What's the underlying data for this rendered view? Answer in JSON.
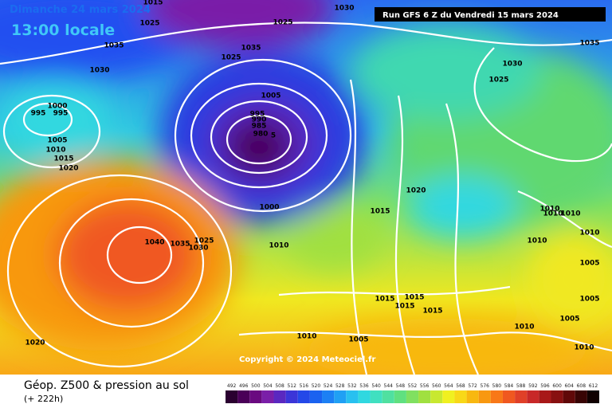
{
  "header": {
    "date": "Dimanche 24 mars 2024",
    "time": "13:00 locale",
    "run": "Run GFS 6 Z du Vendredi 15 mars 2024"
  },
  "copyright": "Copyright © 2024 Meteociel.fr",
  "footer": {
    "title": "Géop. Z500 & pression au sol",
    "lead": "(+ 222h)"
  },
  "colorbar": {
    "ticks": [
      492,
      496,
      500,
      504,
      508,
      512,
      516,
      520,
      524,
      528,
      532,
      536,
      540,
      544,
      548,
      552,
      556,
      560,
      564,
      568,
      572,
      576,
      580,
      584,
      588,
      592,
      596,
      600,
      604,
      608,
      612
    ],
    "colors": [
      "#2a0030",
      "#4a0058",
      "#6a0a80",
      "#7a1fa8",
      "#5a28c0",
      "#3b35d8",
      "#2448e8",
      "#1a62f0",
      "#1c80f4",
      "#20a0f4",
      "#28c0f0",
      "#30d8e0",
      "#40e0c0",
      "#50e0a0",
      "#60e080",
      "#80e060",
      "#a0e040",
      "#c8e830",
      "#f0f020",
      "#f8d818",
      "#f8b810",
      "#f89810",
      "#f87818",
      "#f05820",
      "#e04028",
      "#c82828",
      "#a81818",
      "#881010",
      "#600808",
      "#380404",
      "#100000"
    ]
  },
  "isobar_labels": [
    1015,
    1025,
    1035,
    1030,
    1030,
    1025,
    1035,
    1025,
    1005,
    995,
    990,
    985,
    980,
    5,
    1000,
    995,
    995,
    1005,
    1010,
    1015,
    1020,
    1040,
    1035,
    1025,
    1030,
    1020,
    1000,
    1010,
    1020,
    1015,
    1030,
    1025,
    1035,
    1010,
    1010,
    1010,
    1010,
    1005,
    1010,
    1005,
    1015,
    1015,
    1015,
    1015,
    1010,
    1005,
    1010,
    1005,
    1010
  ]
}
